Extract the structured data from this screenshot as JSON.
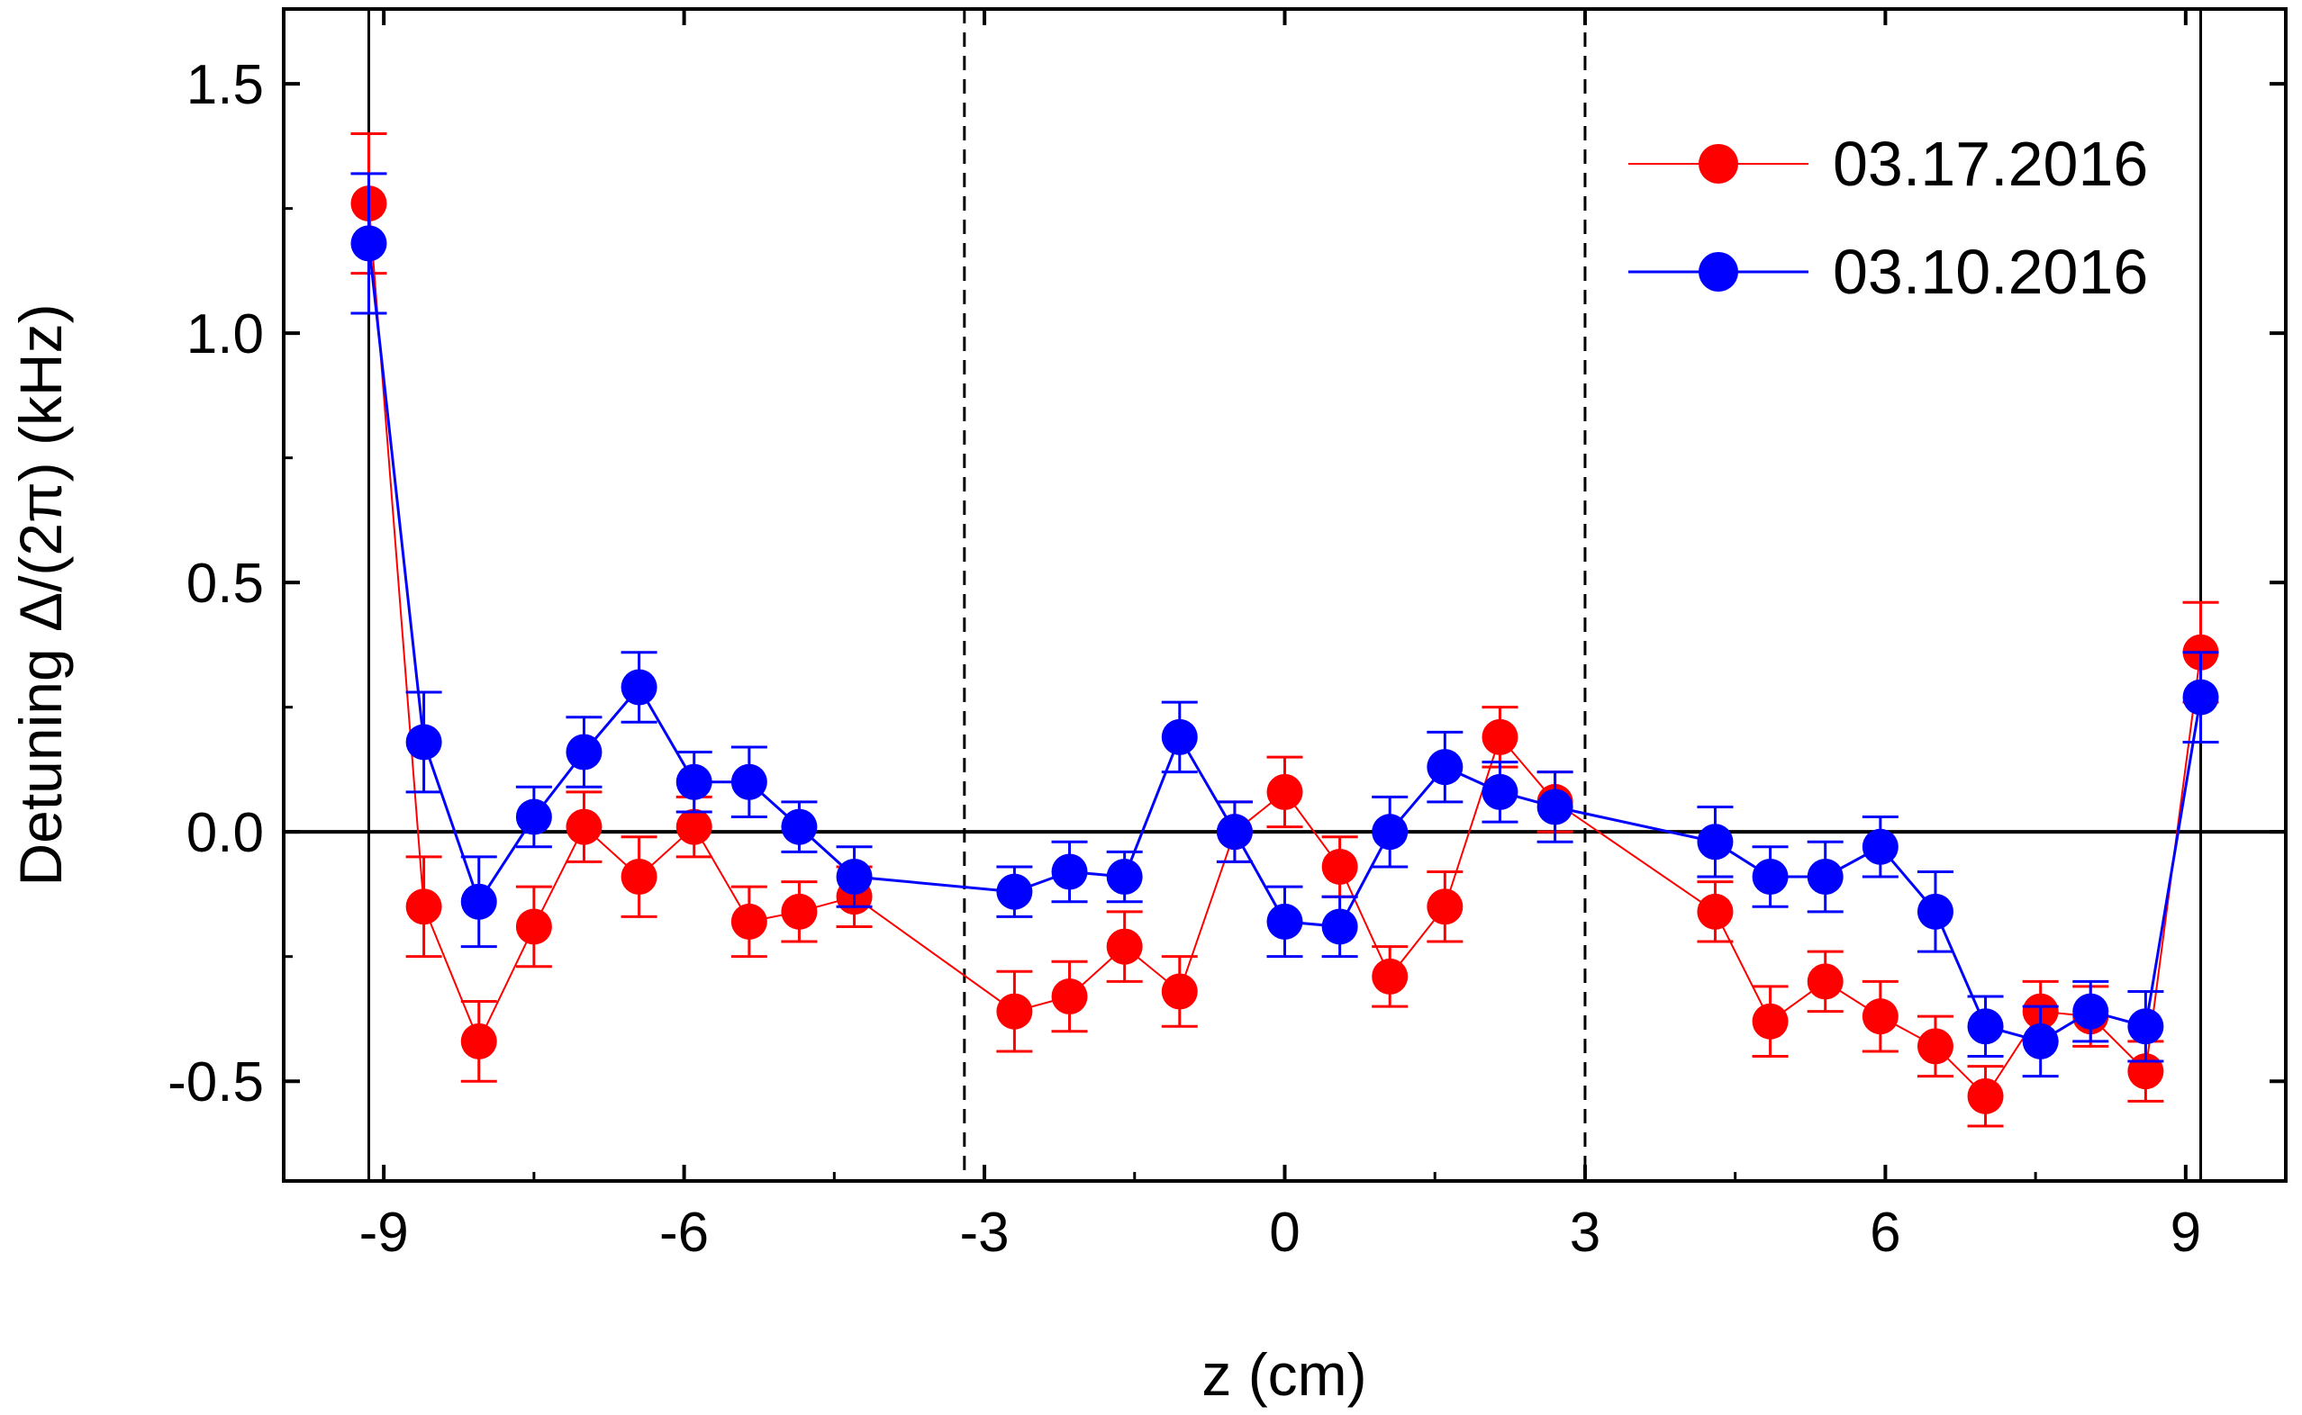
{
  "chart_data": {
    "type": "scatter",
    "title": "",
    "xlabel": "z (cm)",
    "ylabel": "Detuning Δ/(2π) (kHz)",
    "xlim": [
      -10,
      10
    ],
    "ylim": [
      -0.7,
      1.65
    ],
    "xticks": [
      -9,
      -6,
      -3,
      0,
      3,
      6,
      9
    ],
    "xtick_labels": [
      "-9",
      "-6",
      "-3",
      "0",
      "3",
      "6",
      "9"
    ],
    "yticks": [
      -0.5,
      0.0,
      0.5,
      1.0,
      1.5
    ],
    "ytick_labels": [
      "-0.5",
      "0.0",
      "0.5",
      "1.0",
      "1.5"
    ],
    "reference_lines": {
      "horizontal_zero": 0,
      "solid_vertical": [
        -9.15,
        9.15
      ],
      "dashed_vertical": [
        -3.2,
        3.0
      ]
    },
    "legend_position": "top-right",
    "series": [
      {
        "name": "03.17.2016",
        "color": "#ff0000",
        "x": [
          -9.15,
          -8.6,
          -8.05,
          -7.5,
          -7.0,
          -6.45,
          -5.9,
          -5.35,
          -4.85,
          -4.3,
          -2.7,
          -2.15,
          -1.6,
          -1.05,
          -0.5,
          0.0,
          0.55,
          1.05,
          1.6,
          2.15,
          2.7,
          4.3,
          4.85,
          5.4,
          5.95,
          6.5,
          7.0,
          7.55,
          8.05,
          8.6,
          9.15
        ],
        "y": [
          1.26,
          -0.15,
          -0.42,
          -0.19,
          0.01,
          -0.09,
          0.01,
          -0.18,
          -0.16,
          -0.13,
          -0.36,
          -0.33,
          -0.23,
          -0.32,
          0.0,
          0.08,
          -0.07,
          -0.29,
          -0.15,
          0.19,
          0.06,
          -0.16,
          -0.38,
          -0.3,
          -0.37,
          -0.43,
          -0.53,
          -0.36,
          -0.37,
          -0.48,
          0.36
        ],
        "err": [
          0.14,
          0.1,
          0.08,
          0.08,
          0.07,
          0.08,
          0.06,
          0.07,
          0.06,
          0.06,
          0.08,
          0.07,
          0.07,
          0.07,
          0.06,
          0.07,
          0.06,
          0.06,
          0.07,
          0.06,
          0.06,
          0.06,
          0.07,
          0.06,
          0.07,
          0.06,
          0.06,
          0.06,
          0.06,
          0.06,
          0.1
        ]
      },
      {
        "name": "03.10.2016",
        "color": "#0000ff",
        "x": [
          -9.15,
          -8.6,
          -8.05,
          -7.5,
          -7.0,
          -6.45,
          -5.9,
          -5.35,
          -4.85,
          -4.3,
          -2.7,
          -2.15,
          -1.6,
          -1.05,
          -0.5,
          0.0,
          0.55,
          1.05,
          1.6,
          2.15,
          2.7,
          4.3,
          4.85,
          5.4,
          5.95,
          6.5,
          7.0,
          7.55,
          8.05,
          8.6,
          9.15
        ],
        "y": [
          1.18,
          0.18,
          -0.14,
          0.03,
          0.16,
          0.29,
          0.1,
          0.1,
          0.01,
          -0.09,
          -0.12,
          -0.08,
          -0.09,
          0.19,
          0.0,
          -0.18,
          -0.19,
          0.0,
          0.13,
          0.08,
          0.05,
          -0.02,
          -0.09,
          -0.09,
          -0.03,
          -0.16,
          -0.39,
          -0.42,
          -0.36,
          -0.39,
          0.27
        ],
        "err": [
          0.14,
          0.1,
          0.09,
          0.06,
          0.07,
          0.07,
          0.06,
          0.07,
          0.05,
          0.06,
          0.05,
          0.06,
          0.05,
          0.07,
          0.06,
          0.07,
          0.06,
          0.07,
          0.07,
          0.06,
          0.07,
          0.07,
          0.06,
          0.07,
          0.06,
          0.08,
          0.06,
          0.07,
          0.06,
          0.07,
          0.09
        ]
      }
    ]
  }
}
